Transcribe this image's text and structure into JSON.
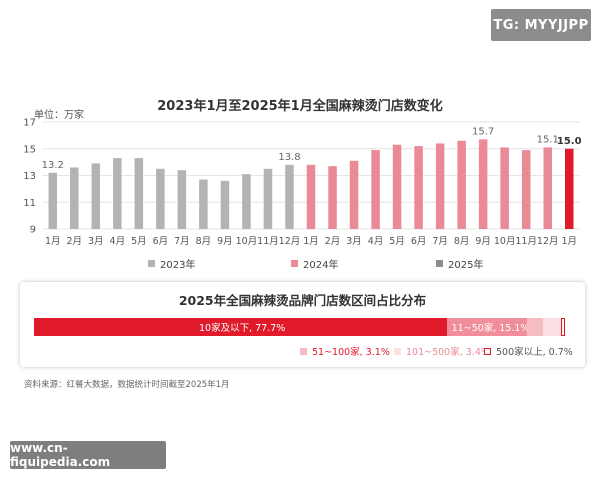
{
  "tag": "TG: MYYJJPP",
  "watermark": "www.cn-fiquipedia.com",
  "source_note": "资料来源：红餐大数据，数据统计时间截至2025年1月",
  "chart_data": [
    {
      "type": "bar",
      "title": "2023年1月至2025年1月全国麻辣烫门店数变化",
      "unit_label": "单位：万家",
      "ylim": [
        9,
        17
      ],
      "yticks": [
        9,
        11,
        13,
        15,
        17
      ],
      "grid": true,
      "categories": [
        "1月",
        "2月",
        "3月",
        "4月",
        "5月",
        "6月",
        "7月",
        "8月",
        "9月",
        "10月",
        "11月",
        "12月",
        "1月",
        "2月",
        "3月",
        "4月",
        "5月",
        "6月",
        "7月",
        "8月",
        "9月",
        "10月",
        "11月",
        "12月",
        "1月"
      ],
      "values": [
        13.2,
        13.6,
        13.9,
        14.3,
        14.3,
        13.5,
        13.4,
        12.7,
        12.6,
        13.1,
        13.5,
        13.8,
        13.8,
        13.7,
        14.1,
        14.9,
        15.3,
        15.2,
        15.4,
        15.6,
        15.7,
        15.1,
        14.9,
        15.1,
        15.0
      ],
      "series_index": [
        0,
        0,
        0,
        0,
        0,
        0,
        0,
        0,
        0,
        0,
        0,
        0,
        1,
        1,
        1,
        1,
        1,
        1,
        1,
        1,
        1,
        1,
        1,
        1,
        2
      ],
      "data_labels": [
        {
          "index": 0,
          "text": "13.2"
        },
        {
          "index": 11,
          "text": "13.8"
        },
        {
          "index": 20,
          "text": "15.7"
        },
        {
          "index": 23,
          "text": "15.1"
        },
        {
          "index": 24,
          "text": "15.0"
        }
      ],
      "series": [
        {
          "name": "2023年",
          "color": "#b3b3b3"
        },
        {
          "name": "2024年",
          "color": "#e98a96"
        },
        {
          "name": "2025年",
          "color": "#e01a2b"
        }
      ],
      "legend_swatch_colors": [
        "#b3b3b3",
        "#e98a96",
        "#8c8c8c"
      ],
      "legend_position": "bottom"
    },
    {
      "type": "bar",
      "orientation": "horizontal-stacked",
      "title": "2025年全国麻辣烫品牌门店数区间占比分布",
      "segments": [
        {
          "name": "10家及以下",
          "value": 77.7,
          "label": "10家及以下, 77.7%",
          "color": "#e01a2b"
        },
        {
          "name": "11~50家",
          "value": 15.1,
          "label": "11~50家, 15.1%",
          "color": "#f08f9b"
        },
        {
          "name": "51~100家",
          "value": 3.1,
          "label": "51~100家, 3.1%",
          "color": "#f7bcc3"
        },
        {
          "name": "101~500家",
          "value": 3.4,
          "label": "101~500家, 3.4%",
          "color": "#fbe0e3"
        },
        {
          "name": "500家以上",
          "value": 0.7,
          "label": "500家以上, 0.7%",
          "color": "#fdf1f2"
        }
      ],
      "legend_position": "bottom"
    }
  ]
}
